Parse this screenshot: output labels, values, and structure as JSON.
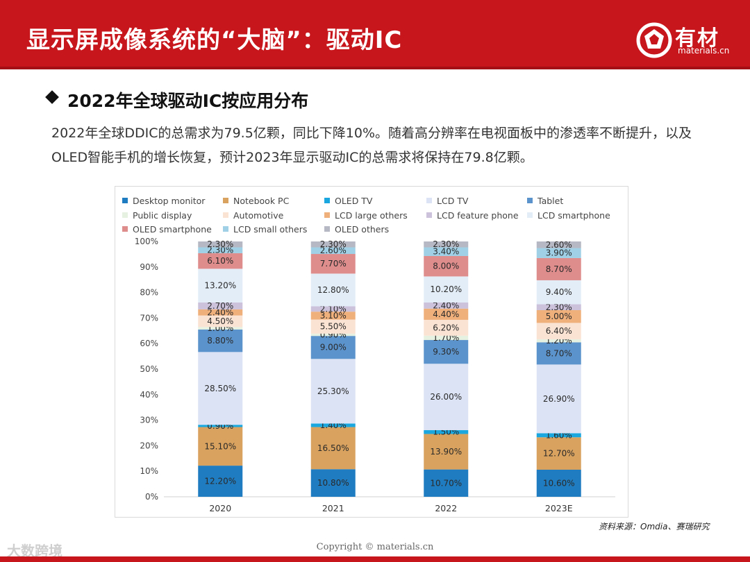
{
  "header": {
    "title": "显示屏成像系统的“大脑”：驱动IC",
    "logo_text": "有材",
    "logo_sub": "materials.cn"
  },
  "section": {
    "heading": "2022年全球驱动IC按应用分布",
    "paragraph": "2022年全球DDIC的总需求为79.5亿颗，同比下降10%。随着高分辨率在电视面板中的渗透率不断提升，以及OLED智能手机的增长恢复，预计2023年显示驱动IC的总需求将保持在79.8亿颗。"
  },
  "footer": {
    "source": "资料来源：Omdia、赛瑞研究",
    "copyright": "Copyright © materials.cn",
    "watermark": "大数跨境"
  },
  "chart_data": {
    "type": "bar",
    "stacked": true,
    "categories": [
      "2020",
      "2021",
      "2022",
      "2023E"
    ],
    "ylim": [
      0,
      100
    ],
    "yticks": [
      "0%",
      "10%",
      "20%",
      "30%",
      "40%",
      "50%",
      "60%",
      "70%",
      "80%",
      "90%",
      "100%"
    ],
    "legend_position": "top",
    "series": [
      {
        "name": "Desktop monitor",
        "color": "#1f7cc0",
        "values": [
          12.2,
          10.8,
          10.7,
          10.6
        ],
        "labels": [
          "12.20%",
          "10.80%",
          "10.70%",
          "10.60%"
        ]
      },
      {
        "name": "Notebook PC",
        "color": "#d9a25e",
        "values": [
          15.1,
          16.5,
          13.9,
          12.7
        ],
        "labels": [
          "15.10%",
          "16.50%",
          "13.90%",
          "12.70%"
        ]
      },
      {
        "name": "OLED TV",
        "color": "#1aa7df",
        "values": [
          0.9,
          1.4,
          1.5,
          1.6
        ],
        "labels": [
          "0.90%",
          "1.40%",
          "1.50%",
          "1.60%"
        ]
      },
      {
        "name": "LCD TV",
        "color": "#dbe3f4",
        "values": [
          28.5,
          25.3,
          26.0,
          26.9
        ],
        "labels": [
          "28.50%",
          "25.30%",
          "26.00%",
          "26.90%"
        ]
      },
      {
        "name": "Tablet",
        "color": "#5b93cc",
        "values": [
          8.8,
          9.0,
          9.3,
          8.7
        ],
        "labels": [
          "8.80%",
          "9.00%",
          "9.30%",
          "8.70%"
        ]
      },
      {
        "name": "Public display",
        "color": "#e7f1e1",
        "values": [
          1.0,
          0.9,
          1.7,
          1.2
        ],
        "labels": [
          "1.00%",
          "0.90%",
          "1.70%",
          "1.20%"
        ]
      },
      {
        "name": "Automotive",
        "color": "#fbe3d3",
        "values": [
          4.5,
          5.5,
          6.2,
          6.4
        ],
        "labels": [
          "4.50%",
          "5.50%",
          "6.20%",
          "6.40%"
        ]
      },
      {
        "name": "LCD large others",
        "color": "#f0b07c",
        "values": [
          2.4,
          3.1,
          4.4,
          5.0
        ],
        "labels": [
          "2.40%",
          "3.10%",
          "4.40%",
          "5.00%"
        ]
      },
      {
        "name": "LCD feature phone",
        "color": "#ccc2dc",
        "values": [
          2.7,
          2.1,
          2.4,
          2.3
        ],
        "labels": [
          "2.70%",
          "2.10%",
          "2.40%",
          "2.30%"
        ]
      },
      {
        "name": "LCD smartphone",
        "color": "#e3edf8",
        "values": [
          13.2,
          12.8,
          10.2,
          9.4
        ],
        "labels": [
          "13.20%",
          "12.80%",
          "10.20%",
          "9.40%"
        ]
      },
      {
        "name": "OLED smartphone",
        "color": "#de8c8c",
        "values": [
          6.1,
          7.7,
          8.0,
          8.7
        ],
        "labels": [
          "6.10%",
          "7.70%",
          "8.00%",
          "8.70%"
        ]
      },
      {
        "name": "LCD small others",
        "color": "#9fd0e6",
        "values": [
          2.3,
          2.6,
          3.4,
          3.9
        ],
        "labels": [
          "2.30%",
          "2.60%",
          "3.40%",
          "3.90%"
        ]
      },
      {
        "name": "OLED others",
        "color": "#b6b8c4",
        "values": [
          2.3,
          2.3,
          2.3,
          2.6
        ],
        "labels": [
          "2.30%",
          "2.30%",
          "2.30%",
          "2.60%"
        ]
      }
    ]
  }
}
